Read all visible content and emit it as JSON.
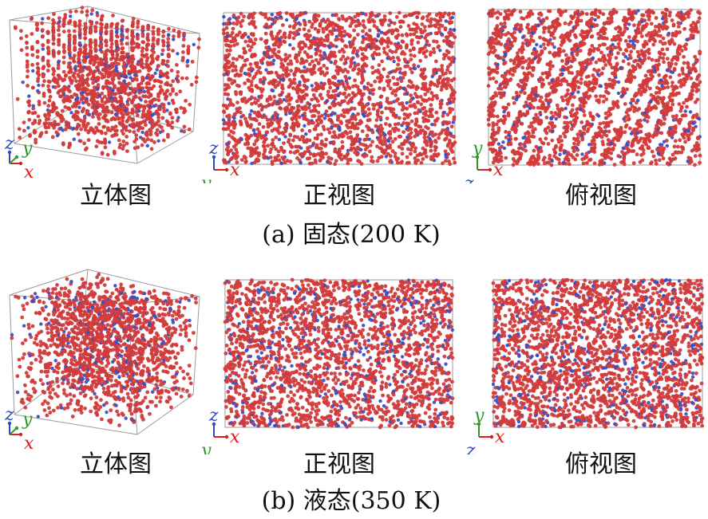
{
  "colors": {
    "atom_main": "#d23b3b",
    "atom_minor": "#3a4fc6",
    "box_edge": "#9a9a9a",
    "axis_x": "#d62020",
    "axis_y": "#2a9a2a",
    "axis_z": "#2a4bc2"
  },
  "axes_letters": {
    "x": "x",
    "y": "y",
    "z": "z"
  },
  "rows": [
    {
      "caption": "(a) 固态(200 K)",
      "state": "solid",
      "views": [
        {
          "label": "立体图",
          "kind": "iso",
          "axes": "xyz"
        },
        {
          "label": "正视图",
          "kind": "front",
          "axes": "xz"
        },
        {
          "label": "俯视图",
          "kind": "top",
          "axes": "xy"
        }
      ]
    },
    {
      "caption": "(b) 液态(350 K)",
      "state": "liquid",
      "views": [
        {
          "label": "立体图",
          "kind": "iso",
          "axes": "xyz"
        },
        {
          "label": "正视图",
          "kind": "front",
          "axes": "xz"
        },
        {
          "label": "俯视图",
          "kind": "top",
          "axes": "xy"
        }
      ]
    }
  ]
}
